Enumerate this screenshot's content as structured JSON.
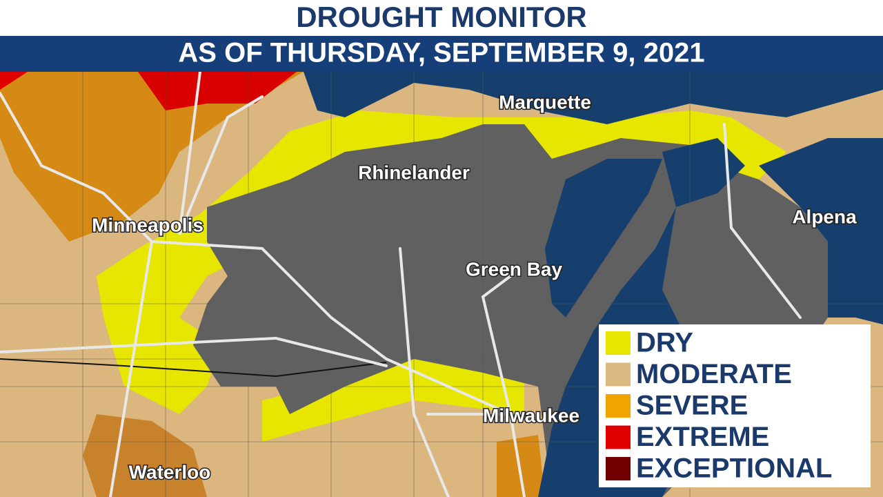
{
  "header": {
    "title": "DROUGHT MONITOR",
    "subtitle": "AS OF THURSDAY, SEPTEMBER 9, 2021"
  },
  "cities": [
    {
      "label": "Marquette"
    },
    {
      "label": "Rhinelander"
    },
    {
      "label": "Minneapolis"
    },
    {
      "label": "Alpena"
    },
    {
      "label": "Green Bay"
    },
    {
      "label": "Milwaukee"
    },
    {
      "label": "Waterloo"
    }
  ],
  "legend": {
    "items": [
      {
        "label": "DRY",
        "color": "#e6e600"
      },
      {
        "label": "MODERATE",
        "color": "#ddb982"
      },
      {
        "label": "SEVERE",
        "color": "#f2a300"
      },
      {
        "label": "EXTREME",
        "color": "#e00000"
      },
      {
        "label": "EXCEPTIONAL",
        "color": "#730000"
      }
    ]
  }
}
